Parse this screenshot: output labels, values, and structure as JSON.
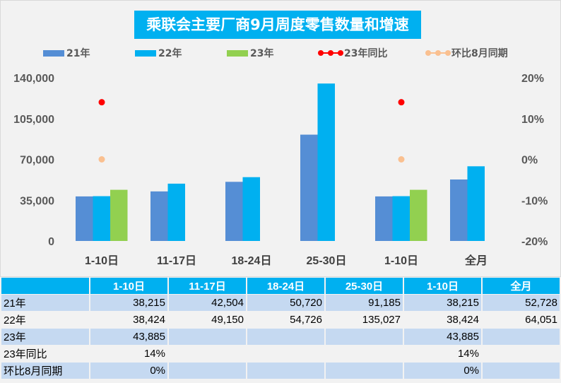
{
  "chart_data": {
    "type": "bar",
    "title": "乘联会主要厂商9月周度零售数量和增速",
    "categories": [
      "1-10日",
      "11-17日",
      "18-24日",
      "25-30日",
      "1-10日",
      "全月"
    ],
    "series": [
      {
        "name": "21年",
        "color": "#558ed5",
        "values": [
          38215,
          42504,
          50720,
          91185,
          38215,
          52728
        ]
      },
      {
        "name": "22年",
        "color": "#00b0f0",
        "values": [
          38424,
          49150,
          54726,
          135027,
          38424,
          64051
        ]
      },
      {
        "name": "23年",
        "color": "#92d050",
        "values": [
          43885,
          null,
          null,
          null,
          43885,
          null
        ]
      }
    ],
    "line_series": [
      {
        "name": "23年同比",
        "color": "#ff0000",
        "values": [
          14,
          null,
          null,
          null,
          14,
          null
        ],
        "labels": [
          "14%",
          "",
          "",
          "",
          "14%",
          ""
        ]
      },
      {
        "name": "环比8月同期",
        "color": "#fac090",
        "values": [
          0,
          null,
          null,
          null,
          0,
          null
        ],
        "labels": [
          "0%",
          "",
          "",
          "",
          "0%",
          ""
        ]
      }
    ],
    "yticks": [
      "0",
      "35,000",
      "70,000",
      "105,000",
      "140,000"
    ],
    "y2ticks": [
      "-20%",
      "-10%",
      "0%",
      "10%",
      "20%"
    ],
    "ylim": [
      0,
      140000
    ],
    "y2lim": [
      -20,
      20
    ],
    "legend_position": "top"
  },
  "table": {
    "row_labels": [
      "21年",
      "22年",
      "23年",
      "23年同比",
      "环比8月同期"
    ]
  }
}
